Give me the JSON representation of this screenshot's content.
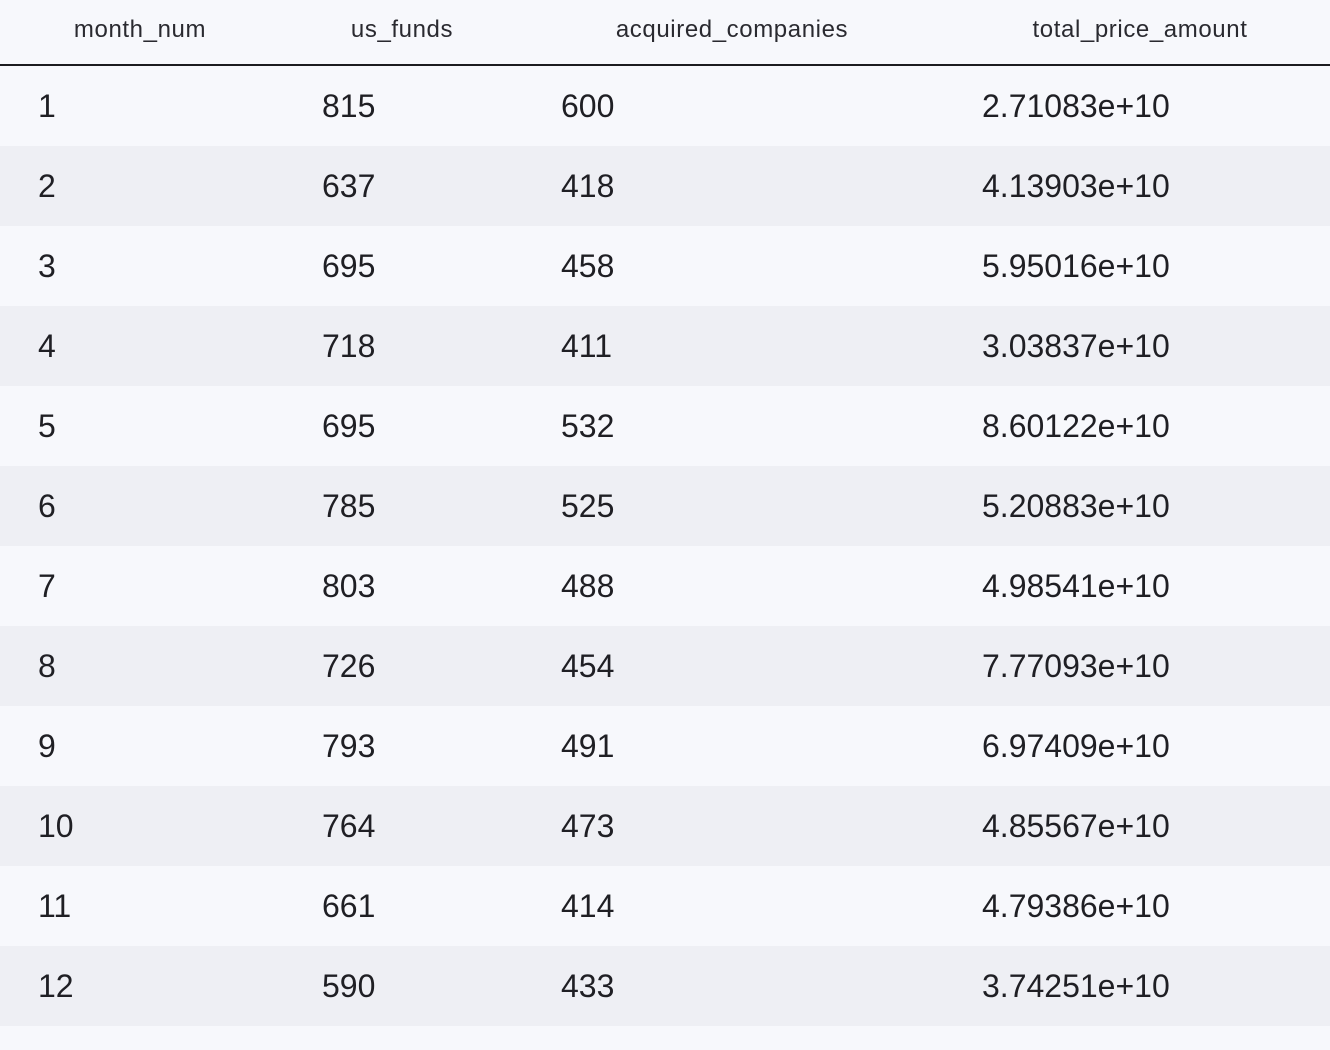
{
  "table": {
    "columns": [
      "month_num",
      "us_funds",
      "acquired_companies",
      "total_price_amount"
    ],
    "rows": [
      [
        "1",
        "815",
        "600",
        "2.71083e+10"
      ],
      [
        "2",
        "637",
        "418",
        "4.13903e+10"
      ],
      [
        "3",
        "695",
        "458",
        "5.95016e+10"
      ],
      [
        "4",
        "718",
        "411",
        "3.03837e+10"
      ],
      [
        "5",
        "695",
        "532",
        "8.60122e+10"
      ],
      [
        "6",
        "785",
        "525",
        "5.20883e+10"
      ],
      [
        "7",
        "803",
        "488",
        "4.98541e+10"
      ],
      [
        "8",
        "726",
        "454",
        "7.77093e+10"
      ],
      [
        "9",
        "793",
        "491",
        "6.97409e+10"
      ],
      [
        "10",
        "764",
        "473",
        "4.85567e+10"
      ],
      [
        "11",
        "661",
        "414",
        "4.79386e+10"
      ],
      [
        "12",
        "590",
        "433",
        "3.74251e+10"
      ]
    ]
  }
}
